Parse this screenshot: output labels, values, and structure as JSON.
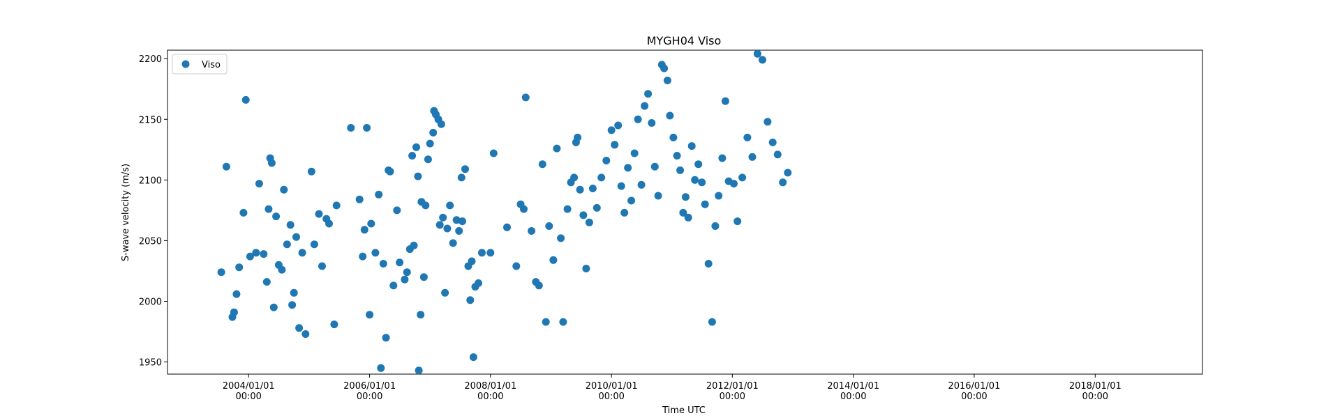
{
  "chart_data": {
    "type": "scatter",
    "title": "MYGH04 Viso",
    "xlabel": "Time UTC",
    "ylabel": "S-wave velocity (m/s)",
    "xlim": [
      "2002/08/29",
      "2019/10/11"
    ],
    "ylim": [
      1940,
      2207
    ],
    "x_ticks": [
      {
        "value": "2004/01/01",
        "line1": "2004/01/01",
        "line2": "00:00"
      },
      {
        "value": "2006/01/01",
        "line1": "2006/01/01",
        "line2": "00:00"
      },
      {
        "value": "2008/01/01",
        "line1": "2008/01/01",
        "line2": "00:00"
      },
      {
        "value": "2010/01/01",
        "line1": "2010/01/01",
        "line2": "00:00"
      },
      {
        "value": "2012/01/01",
        "line1": "2012/01/01",
        "line2": "00:00"
      },
      {
        "value": "2014/01/01",
        "line1": "2014/01/01",
        "line2": "00:00"
      },
      {
        "value": "2016/01/01",
        "line1": "2016/01/01",
        "line2": "00:00"
      },
      {
        "value": "2018/01/01",
        "line1": "2018/01/01",
        "line2": "00:00"
      }
    ],
    "y_ticks": [
      1950,
      2000,
      2050,
      2100,
      2150,
      2200
    ],
    "grid": false,
    "legend": {
      "position": "upper-left",
      "entries": [
        "Viso"
      ]
    },
    "marker_color": "#1f77b4",
    "series": [
      {
        "name": "Viso",
        "points": [
          [
            "2003/07/20",
            2024
          ],
          [
            "2003/08/20",
            2111
          ],
          [
            "2003/09/25",
            1987
          ],
          [
            "2003/10/05",
            1991
          ],
          [
            "2003/10/20",
            2006
          ],
          [
            "2003/11/05",
            2028
          ],
          [
            "2003/12/01",
            2073
          ],
          [
            "2003/12/15",
            2166
          ],
          [
            "2004/01/10",
            2037
          ],
          [
            "2004/02/15",
            2040
          ],
          [
            "2004/03/05",
            2097
          ],
          [
            "2004/04/01",
            2039
          ],
          [
            "2004/04/20",
            2016
          ],
          [
            "2004/05/01",
            2076
          ],
          [
            "2004/05/10",
            2118
          ],
          [
            "2004/05/20",
            2114
          ],
          [
            "2004/06/01",
            1995
          ],
          [
            "2004/06/15",
            2070
          ],
          [
            "2004/07/01",
            2030
          ],
          [
            "2004/07/20",
            2026
          ],
          [
            "2004/08/01",
            2092
          ],
          [
            "2004/08/20",
            2047
          ],
          [
            "2004/09/10",
            2063
          ],
          [
            "2004/09/20",
            1997
          ],
          [
            "2004/10/01",
            2007
          ],
          [
            "2004/10/15",
            2053
          ],
          [
            "2004/11/01",
            1978
          ],
          [
            "2004/11/20",
            2040
          ],
          [
            "2004/12/10",
            1973
          ],
          [
            "2005/01/15",
            2107
          ],
          [
            "2005/02/01",
            2047
          ],
          [
            "2005/03/01",
            2072
          ],
          [
            "2005/03/20",
            2029
          ],
          [
            "2005/04/15",
            2068
          ],
          [
            "2005/05/01",
            2064
          ],
          [
            "2005/06/01",
            1981
          ],
          [
            "2005/06/15",
            2079
          ],
          [
            "2005/09/10",
            2143
          ],
          [
            "2005/11/01",
            2084
          ],
          [
            "2005/11/20",
            2037
          ],
          [
            "2005/12/01",
            2059
          ],
          [
            "2005/12/15",
            2143
          ],
          [
            "2006/01/01",
            1989
          ],
          [
            "2006/01/10",
            2064
          ],
          [
            "2006/02/05",
            2040
          ],
          [
            "2006/02/25",
            2088
          ],
          [
            "2006/03/10",
            1945
          ],
          [
            "2006/03/25",
            2031
          ],
          [
            "2006/04/10",
            1970
          ],
          [
            "2006/04/25",
            2108
          ],
          [
            "2006/05/05",
            2107
          ],
          [
            "2006/05/25",
            2013
          ],
          [
            "2006/06/15",
            2075
          ],
          [
            "2006/07/01",
            2032
          ],
          [
            "2006/08/01",
            2018
          ],
          [
            "2006/08/15",
            2024
          ],
          [
            "2006/09/01",
            2043
          ],
          [
            "2006/09/15",
            2120
          ],
          [
            "2006/09/25",
            2046
          ],
          [
            "2006/10/10",
            2127
          ],
          [
            "2006/10/20",
            2103
          ],
          [
            "2006/10/25",
            1943
          ],
          [
            "2006/11/05",
            1989
          ],
          [
            "2006/11/10",
            2082
          ],
          [
            "2006/11/25",
            2020
          ],
          [
            "2006/12/05",
            2079
          ],
          [
            "2006/12/20",
            2117
          ],
          [
            "2007/01/01",
            2130
          ],
          [
            "2007/01/20",
            2139
          ],
          [
            "2007/01/25",
            2157
          ],
          [
            "2007/02/05",
            2154
          ],
          [
            "2007/02/20",
            2150
          ],
          [
            "2007/03/01",
            2063
          ],
          [
            "2007/03/10",
            2146
          ],
          [
            "2007/03/20",
            2069
          ],
          [
            "2007/04/01",
            2007
          ],
          [
            "2007/04/15",
            2060
          ],
          [
            "2007/05/01",
            2079
          ],
          [
            "2007/05/20",
            2048
          ],
          [
            "2007/06/10",
            2067
          ],
          [
            "2007/06/25",
            2058
          ],
          [
            "2007/07/10",
            2102
          ],
          [
            "2007/07/15",
            2066
          ],
          [
            "2007/08/01",
            2109
          ],
          [
            "2007/08/20",
            2029
          ],
          [
            "2007/09/01",
            2001
          ],
          [
            "2007/09/10",
            2033
          ],
          [
            "2007/09/20",
            1954
          ],
          [
            "2007/10/01",
            2012
          ],
          [
            "2007/10/20",
            2015
          ],
          [
            "2007/11/10",
            2040
          ],
          [
            "2008/01/01",
            2040
          ],
          [
            "2008/01/20",
            2122
          ],
          [
            "2008/04/10",
            2061
          ],
          [
            "2008/06/05",
            2029
          ],
          [
            "2008/07/01",
            2080
          ],
          [
            "2008/07/20",
            2076
          ],
          [
            "2008/08/01",
            2168
          ],
          [
            "2008/09/05",
            2058
          ],
          [
            "2008/10/01",
            2016
          ],
          [
            "2008/10/20",
            2013
          ],
          [
            "2008/11/10",
            2113
          ],
          [
            "2008/12/01",
            1983
          ],
          [
            "2008/12/20",
            2062
          ],
          [
            "2009/01/15",
            2034
          ],
          [
            "2009/02/05",
            2126
          ],
          [
            "2009/03/01",
            2052
          ],
          [
            "2009/03/15",
            1983
          ],
          [
            "2009/04/10",
            2076
          ],
          [
            "2009/05/01",
            2098
          ],
          [
            "2009/05/20",
            2102
          ],
          [
            "2009/06/01",
            2131
          ],
          [
            "2009/06/10",
            2135
          ],
          [
            "2009/06/25",
            2092
          ],
          [
            "2009/07/15",
            2071
          ],
          [
            "2009/08/01",
            2027
          ],
          [
            "2009/08/20",
            2065
          ],
          [
            "2009/09/10",
            2093
          ],
          [
            "2009/10/05",
            2077
          ],
          [
            "2009/11/01",
            2102
          ],
          [
            "2009/12/01",
            2116
          ],
          [
            "2010/01/01",
            2141
          ],
          [
            "2010/01/20",
            2129
          ],
          [
            "2010/02/10",
            2145
          ],
          [
            "2010/03/01",
            2095
          ],
          [
            "2010/03/20",
            2073
          ],
          [
            "2010/04/10",
            2110
          ],
          [
            "2010/05/01",
            2083
          ],
          [
            "2010/05/20",
            2122
          ],
          [
            "2010/06/10",
            2150
          ],
          [
            "2010/07/01",
            2096
          ],
          [
            "2010/07/20",
            2161
          ],
          [
            "2010/08/10",
            2171
          ],
          [
            "2010/09/01",
            2147
          ],
          [
            "2010/09/20",
            2111
          ],
          [
            "2010/10/10",
            2087
          ],
          [
            "2010/11/01",
            2195
          ],
          [
            "2010/11/15",
            2192
          ],
          [
            "2010/12/05",
            2182
          ],
          [
            "2010/12/20",
            2153
          ],
          [
            "2011/01/10",
            2135
          ],
          [
            "2011/02/01",
            2120
          ],
          [
            "2011/02/20",
            2108
          ],
          [
            "2011/03/10",
            2073
          ],
          [
            "2011/03/25",
            2086
          ],
          [
            "2011/04/10",
            2069
          ],
          [
            "2011/05/01",
            2128
          ],
          [
            "2011/05/20",
            2100
          ],
          [
            "2011/06/10",
            2113
          ],
          [
            "2011/07/01",
            2098
          ],
          [
            "2011/07/20",
            2080
          ],
          [
            "2011/08/10",
            2031
          ],
          [
            "2011/09/01",
            1983
          ],
          [
            "2011/09/20",
            2062
          ],
          [
            "2011/10/10",
            2087
          ],
          [
            "2011/11/01",
            2118
          ],
          [
            "2011/11/20",
            2165
          ],
          [
            "2011/12/10",
            2099
          ],
          [
            "2012/01/10",
            2097
          ],
          [
            "2012/02/01",
            2066
          ],
          [
            "2012/03/01",
            2102
          ],
          [
            "2012/04/01",
            2135
          ],
          [
            "2012/05/01",
            2119
          ],
          [
            "2012/06/01",
            2204
          ],
          [
            "2012/07/01",
            2199
          ],
          [
            "2012/08/01",
            2148
          ],
          [
            "2012/09/01",
            2131
          ],
          [
            "2012/10/01",
            2121
          ],
          [
            "2012/11/01",
            2098
          ],
          [
            "2012/12/01",
            2106
          ]
        ]
      }
    ]
  }
}
